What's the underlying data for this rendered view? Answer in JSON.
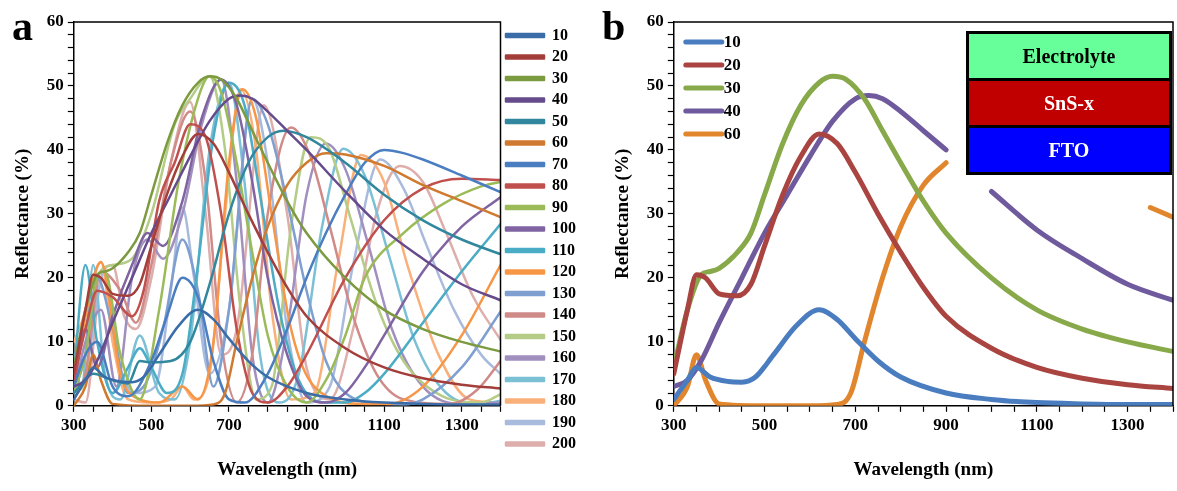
{
  "chart_data": [
    {
      "type": "line",
      "title": "a",
      "xlabel": "Wavelength (nm)",
      "ylabel": "Reflectance (%)",
      "legend": "right",
      "xlim": [
        300,
        1400
      ],
      "ylim": [
        0,
        60
      ],
      "xticks": [
        300,
        {
          "value": 350,
          "label": null
        },
        {
          "value": 400,
          "label": null
        },
        {
          "value": 450,
          "label": null
        },
        500,
        {
          "value": 550,
          "label": null
        },
        {
          "value": 600,
          "label": null
        },
        {
          "value": 650,
          "label": null
        },
        700,
        {
          "value": 750,
          "label": null
        },
        {
          "value": 800,
          "label": null
        },
        {
          "value": 850,
          "label": null
        },
        900,
        {
          "value": 950,
          "label": null
        },
        {
          "value": 1000,
          "label": null
        },
        {
          "value": 1050,
          "label": null
        },
        1100,
        {
          "value": 1150,
          "label": null
        },
        {
          "value": 1200,
          "label": null
        },
        {
          "value": 1250,
          "label": null
        },
        1300,
        {
          "value": 1350,
          "label": null
        },
        {
          "value": 1400,
          "label": null
        }
      ],
      "yticks": [
        0,
        {
          "value": 2,
          "label": null
        },
        {
          "value": 4,
          "label": null
        },
        {
          "value": 6,
          "label": null
        },
        {
          "value": 8,
          "label": null
        },
        10,
        {
          "value": 12,
          "label": null
        },
        {
          "value": 14,
          "label": null
        },
        {
          "value": 16,
          "label": null
        },
        {
          "value": 18,
          "label": null
        },
        20,
        {
          "value": 22,
          "label": null
        },
        {
          "value": 24,
          "label": null
        },
        {
          "value": 26,
          "label": null
        },
        {
          "value": 28,
          "label": null
        },
        30,
        {
          "value": 32,
          "label": null
        },
        {
          "value": 34,
          "label": null
        },
        {
          "value": 36,
          "label": null
        },
        {
          "value": 38,
          "label": null
        },
        40,
        {
          "value": 42,
          "label": null
        },
        {
          "value": 44,
          "label": null
        },
        {
          "value": 46,
          "label": null
        },
        {
          "value": 48,
          "label": null
        },
        50,
        {
          "value": 52,
          "label": null
        },
        {
          "value": 54,
          "label": null
        },
        {
          "value": 56,
          "label": null
        },
        {
          "value": 58,
          "label": null
        },
        60
      ],
      "series": [
        {
          "name": "10",
          "color": "#3a6ca8",
          "x": [
            300,
            330,
            350,
            380,
            420,
            450,
            480,
            520,
            570,
            620,
            660,
            700,
            750,
            800,
            900,
            1000,
            1100,
            1200,
            1300,
            1400
          ],
          "values": [
            1,
            4,
            6,
            4.5,
            3.8,
            3.7,
            4.5,
            8,
            12.5,
            15,
            13.5,
            10.5,
            7,
            4.5,
            2,
            1,
            0.5,
            0.3,
            0.2,
            0.2
          ]
        },
        {
          "name": "20",
          "color": "#a33e3b",
          "x": [
            300,
            330,
            350,
            370,
            400,
            440,
            470,
            500,
            540,
            580,
            620,
            660,
            700,
            750,
            800,
            850,
            900,
            1000,
            1100,
            1200,
            1300,
            1400
          ],
          "values": [
            5,
            15,
            20.5,
            20,
            17.5,
            17.2,
            19,
            25,
            33,
            39,
            42.5,
            41,
            36.5,
            30,
            24,
            18.5,
            14,
            9,
            6,
            4.3,
            3.3,
            2.7
          ]
        },
        {
          "name": "30",
          "color": "#7c9a3f",
          "x": [
            300,
            330,
            360,
            380,
            400,
            440,
            470,
            500,
            540,
            580,
            620,
            650,
            680,
            720,
            760,
            800,
            850,
            900,
            1000,
            1100,
            1200,
            1300,
            1400
          ],
          "values": [
            6,
            15,
            20.5,
            21,
            21.5,
            24,
            27,
            33,
            41,
            47,
            50.5,
            51.5,
            51,
            48,
            43,
            38,
            32,
            27,
            20,
            15,
            12,
            10,
            8.5
          ]
        },
        {
          "name": "40",
          "color": "#664b8c",
          "x": [
            300,
            330,
            360,
            400,
            450,
            500,
            550,
            600,
            650,
            700,
            730,
            760,
            800,
            850,
            900,
            1000,
            1100,
            1200,
            1300,
            1400
          ],
          "values": [
            3,
            4,
            7,
            13,
            20,
            27,
            33,
            39,
            44.5,
            48,
            48.5,
            48,
            46,
            43,
            40,
            33.5,
            27.5,
            23,
            19,
            16.5
          ]
        },
        {
          "name": "50",
          "color": "#31879d",
          "x": [
            300,
            350,
            400,
            440,
            470,
            500,
            550,
            600,
            650,
            700,
            750,
            800,
            840,
            900,
            1000,
            1100,
            1200,
            1300,
            1400
          ],
          "values": [
            2,
            5,
            4,
            3.5,
            7,
            6.8,
            7,
            10,
            19,
            30,
            38,
            42,
            43,
            42,
            38,
            33,
            29,
            26,
            23.7
          ]
        },
        {
          "name": "60",
          "color": "#d07a30",
          "x": [
            300,
            330,
            350,
            370,
            400,
            500,
            600,
            660,
            690,
            720,
            760,
            800,
            850,
            900,
            950,
            1000,
            1100,
            1200,
            1300,
            1400
          ],
          "values": [
            0,
            3,
            8,
            4,
            0.3,
            0,
            0,
            0.2,
            2,
            10,
            20,
            28,
            34.5,
            38,
            39.5,
            39.3,
            37.5,
            34.5,
            32,
            29.5
          ]
        },
        {
          "name": "70",
          "color": "#4a7ec0",
          "x": [
            300,
            330,
            360,
            400,
            440,
            500,
            540,
            580,
            620,
            660,
            700,
            740,
            800,
            850,
            900,
            950,
            1000,
            1050,
            1100,
            1150,
            1200,
            1300,
            1400
          ],
          "values": [
            3,
            8,
            10,
            3,
            1.5,
            7,
            14,
            20,
            17,
            7,
            1,
            0.5,
            5,
            12,
            20,
            27,
            33,
            38,
            40,
            39.5,
            38.5,
            36,
            33.4
          ]
        },
        {
          "name": "80",
          "color": "#c0504d",
          "x": [
            300,
            330,
            360,
            400,
            450,
            480,
            520,
            560,
            600,
            640,
            680,
            720,
            760,
            800,
            850,
            900,
            1000,
            1100,
            1200,
            1300,
            1400
          ],
          "values": [
            4,
            12,
            18,
            17,
            14,
            18,
            32,
            38,
            44,
            42,
            30,
            12,
            2,
            0.5,
            3,
            8,
            20,
            29,
            34,
            35.5,
            35.3
          ]
        },
        {
          "name": "90",
          "color": "#9bbb59",
          "x": [
            300,
            330,
            360,
            380,
            420,
            470,
            520,
            570,
            620,
            650,
            680,
            720,
            760,
            800,
            850,
            900,
            950,
            1000,
            1050,
            1150,
            1250,
            1350,
            1400
          ],
          "values": [
            2,
            8,
            20,
            21,
            8,
            1,
            15,
            35,
            48,
            51.5,
            49,
            38,
            24,
            11,
            3,
            0.5,
            4,
            11,
            20,
            27,
            31.5,
            34.3,
            35
          ]
        },
        {
          "name": "100",
          "color": "#8064a2",
          "x": [
            300,
            330,
            360,
            400,
            450,
            490,
            530,
            580,
            630,
            680,
            720,
            760,
            800,
            850,
            900,
            950,
            1000,
            1050,
            1100,
            1200,
            1300,
            1400
          ],
          "values": [
            3,
            12,
            6,
            14,
            22,
            27,
            25,
            32,
            45,
            51,
            47,
            35,
            20,
            8,
            1.5,
            0.5,
            2,
            6,
            11,
            21,
            28,
            32.6
          ]
        },
        {
          "name": "110",
          "color": "#4bacc6",
          "x": [
            300,
            330,
            360,
            400,
            440,
            470,
            500,
            540,
            580,
            620,
            660,
            700,
            740,
            780,
            830,
            880,
            950,
            1000,
            1050,
            1100,
            1200,
            1300,
            1400
          ],
          "values": [
            5,
            22,
            10,
            2,
            6,
            9,
            6,
            2,
            5,
            22,
            42,
            50.5,
            47,
            33,
            15,
            4,
            0.5,
            0.5,
            2,
            5,
            13,
            21,
            28.4
          ]
        },
        {
          "name": "120",
          "color": "#f79646",
          "x": [
            300,
            330,
            370,
            420,
            470,
            520,
            580,
            620,
            660,
            700,
            735,
            770,
            810,
            860,
            920,
            1050,
            1110,
            1200,
            1300,
            1400
          ],
          "values": [
            3,
            14,
            22.5,
            5,
            1,
            0.5,
            3,
            1,
            10,
            38,
            49.5,
            45,
            30,
            12,
            3,
            0.3,
            0.3,
            3,
            11,
            22
          ]
        },
        {
          "name": "130",
          "color": "#7f9fd0",
          "x": [
            300,
            330,
            360,
            400,
            440,
            480,
            530,
            580,
            620,
            660,
            700,
            760,
            800,
            850,
            900,
            950,
            1000,
            1100,
            1150,
            1200,
            1300,
            1400
          ],
          "values": [
            2,
            8,
            20,
            12,
            2,
            3,
            12,
            26,
            18,
            3,
            15,
            48,
            44,
            32,
            18,
            7,
            2,
            0.3,
            0.2,
            1,
            6,
            14.7
          ]
        },
        {
          "name": "140",
          "color": "#d08a88",
          "x": [
            300,
            330,
            370,
            420,
            460,
            500,
            550,
            600,
            640,
            680,
            720,
            760,
            800,
            860,
            910,
            960,
            1020,
            1080,
            1150,
            1270,
            1340,
            1400
          ],
          "values": [
            1,
            5,
            21,
            18,
            13,
            22,
            38,
            46,
            35,
            10,
            0.5,
            8,
            30,
            43.5,
            39,
            28,
            14,
            5,
            1,
            0.3,
            2.5,
            7
          ]
        },
        {
          "name": "150",
          "color": "#b4cc86",
          "x": [
            300,
            330,
            360,
            400,
            450,
            500,
            560,
            600,
            650,
            690,
            730,
            770,
            810,
            860,
            910,
            960,
            1010,
            1080,
            1150,
            1250,
            1350,
            1400
          ],
          "values": [
            2,
            4,
            20,
            22,
            23,
            30,
            44,
            48,
            51.5,
            40,
            15,
            1,
            3,
            28,
            42,
            40,
            30,
            16,
            7,
            1.5,
            0.5,
            1.8
          ]
        },
        {
          "name": "160",
          "color": "#a08fbf",
          "x": [
            300,
            330,
            370,
            410,
            450,
            490,
            530,
            580,
            630,
            680,
            720,
            760,
            800,
            850,
            900,
            950,
            1000,
            1060,
            1120,
            1200,
            1300,
            1400
          ],
          "values": [
            2,
            10,
            15,
            3,
            20,
            26,
            23,
            30,
            44,
            51,
            35,
            8,
            0.5,
            12,
            33,
            41,
            37,
            25,
            12,
            3,
            0.3,
            0.5
          ]
        },
        {
          "name": "170",
          "color": "#7cc0d6",
          "x": [
            300,
            320,
            350,
            380,
            420,
            470,
            520,
            560,
            600,
            650,
            700,
            740,
            780,
            830,
            880,
            940,
            995,
            1050,
            1110,
            1180,
            1260,
            1350,
            1400
          ],
          "values": [
            8,
            3,
            22,
            5,
            1,
            11,
            2,
            1,
            10,
            40,
            50.5,
            35,
            8,
            0.5,
            5,
            28,
            40.2,
            36,
            24,
            10,
            2,
            0.3,
            0.8
          ]
        },
        {
          "name": "180",
          "color": "#f9b07a",
          "x": [
            300,
            320,
            370,
            400,
            440,
            500,
            550,
            580,
            610,
            650,
            690,
            730,
            770,
            810,
            860,
            920,
            980,
            1040,
            1100,
            1160,
            1240,
            1320,
            1400
          ],
          "values": [
            10,
            13,
            22.5,
            10,
            1,
            0.5,
            1,
            3,
            1,
            5,
            30,
            49.5,
            40,
            15,
            1,
            2,
            22,
            39.2,
            35,
            22,
            8,
            1,
            0.5
          ]
        },
        {
          "name": "190",
          "color": "#a9bbdd",
          "x": [
            330,
            380,
            420,
            460,
            510,
            550,
            580,
            610,
            650,
            700,
            760,
            800,
            850,
            900,
            960,
            1020,
            1090,
            1150,
            1210,
            1280,
            1350,
            1400
          ],
          "values": [
            4,
            21,
            6,
            2,
            3,
            18,
            31,
            20,
            5,
            15,
            48,
            38,
            12,
            0.5,
            3,
            22,
            38.5,
            34,
            25,
            15,
            8,
            5
          ]
        },
        {
          "name": "200",
          "color": "#ddaeac",
          "x": [
            300,
            330,
            370,
            400,
            430,
            460,
            500,
            550,
            600,
            640,
            680,
            720,
            790,
            850,
            900,
            960,
            1020,
            1080,
            1140,
            1200,
            1260,
            1330,
            1400
          ],
          "values": [
            1,
            0.5,
            20,
            22,
            14,
            12,
            20,
            38,
            47.5,
            30,
            8,
            12,
            47,
            30,
            6,
            1,
            12,
            30,
            37.5,
            35,
            27,
            17,
            10.3
          ]
        }
      ]
    },
    {
      "type": "line",
      "title": "b",
      "xlabel": "Wavelength (nm)",
      "ylabel": "Reflectance (%)",
      "legend": "top left",
      "annotations": [
        "Electrolyte",
        "SnS-x",
        "FTO"
      ],
      "xlim": [
        300,
        1400
      ],
      "ylim": [
        0,
        60
      ],
      "xticks": [
        300,
        {
          "value": 350,
          "label": null
        },
        {
          "value": 400,
          "label": null
        },
        {
          "value": 450,
          "label": null
        },
        500,
        {
          "value": 550,
          "label": null
        },
        {
          "value": 600,
          "label": null
        },
        {
          "value": 650,
          "label": null
        },
        700,
        {
          "value": 750,
          "label": null
        },
        {
          "value": 800,
          "label": null
        },
        {
          "value": 850,
          "label": null
        },
        900,
        {
          "value": 950,
          "label": null
        },
        {
          "value": 1000,
          "label": null
        },
        {
          "value": 1050,
          "label": null
        },
        1100,
        {
          "value": 1150,
          "label": null
        },
        {
          "value": 1200,
          "label": null
        },
        {
          "value": 1250,
          "label": null
        },
        1300,
        {
          "value": 1350,
          "label": null
        },
        {
          "value": 1400,
          "label": null
        }
      ],
      "yticks": [
        0,
        {
          "value": 2,
          "label": null
        },
        {
          "value": 4,
          "label": null
        },
        {
          "value": 6,
          "label": null
        },
        {
          "value": 8,
          "label": null
        },
        10,
        {
          "value": 12,
          "label": null
        },
        {
          "value": 14,
          "label": null
        },
        {
          "value": 16,
          "label": null
        },
        {
          "value": 18,
          "label": null
        },
        20,
        {
          "value": 22,
          "label": null
        },
        {
          "value": 24,
          "label": null
        },
        {
          "value": 26,
          "label": null
        },
        {
          "value": 28,
          "label": null
        },
        30,
        {
          "value": 32,
          "label": null
        },
        {
          "value": 34,
          "label": null
        },
        {
          "value": 36,
          "label": null
        },
        {
          "value": 38,
          "label": null
        },
        40,
        {
          "value": 42,
          "label": null
        },
        {
          "value": 44,
          "label": null
        },
        {
          "value": 46,
          "label": null
        },
        {
          "value": 48,
          "label": null
        },
        50,
        {
          "value": 52,
          "label": null
        },
        {
          "value": 54,
          "label": null
        },
        {
          "value": 56,
          "label": null
        },
        {
          "value": 58,
          "label": null
        },
        60
      ],
      "series": [
        {
          "name": "10",
          "color": "#4a7dbf",
          "x": [
            300,
            330,
            350,
            380,
            420,
            450,
            480,
            520,
            570,
            620,
            660,
            700,
            750,
            800,
            900,
            1000,
            1100,
            1200,
            1300,
            1400
          ],
          "values": [
            1,
            4,
            6,
            4.5,
            3.8,
            3.7,
            4.5,
            8,
            12.5,
            15,
            13.5,
            10.5,
            7,
            4.5,
            2,
            1,
            0.5,
            0.3,
            0.2,
            0.2
          ]
        },
        {
          "name": "20",
          "color": "#a94441",
          "x": [
            300,
            330,
            350,
            370,
            400,
            440,
            470,
            500,
            540,
            580,
            620,
            660,
            700,
            750,
            800,
            850,
            900,
            1000,
            1100,
            1200,
            1300,
            1400
          ],
          "values": [
            5,
            15,
            20.5,
            20,
            17.5,
            17.2,
            19,
            25,
            33,
            39,
            42.5,
            41,
            36.5,
            30,
            24,
            18.5,
            14,
            9,
            6,
            4.3,
            3.3,
            2.7
          ]
        },
        {
          "name": "30",
          "color": "#88a94a",
          "x": [
            300,
            330,
            360,
            380,
            400,
            440,
            470,
            500,
            540,
            580,
            620,
            650,
            680,
            720,
            760,
            800,
            850,
            900,
            1000,
            1100,
            1200,
            1300,
            1400
          ],
          "values": [
            6,
            15,
            20.5,
            21,
            21.5,
            24,
            27,
            33,
            41,
            47,
            50.5,
            51.5,
            51,
            48,
            43,
            38,
            32,
            27,
            20,
            15,
            12,
            10,
            8.5
          ]
        },
        {
          "name": "40",
          "color": "#6e5a9c",
          "x": [
            300,
            330,
            360,
            400,
            450,
            500,
            550,
            600,
            650,
            700,
            730,
            760,
            800,
            850,
            900,
            950,
            1000,
            1100,
            1200,
            1300,
            1400
          ],
          "values": [
            3,
            4,
            7,
            13,
            20,
            27,
            33,
            39,
            44.5,
            48,
            48.5,
            48,
            46,
            43,
            40,
            null,
            33.5,
            27.5,
            23,
            19,
            16.5
          ]
        },
        {
          "name": "60",
          "color": "#e2862e",
          "x": [
            300,
            330,
            350,
            370,
            400,
            500,
            600,
            660,
            690,
            720,
            760,
            800,
            850,
            900,
            950,
            1000,
            1100,
            1200,
            1300,
            1350,
            1400
          ],
          "values": [
            0,
            3,
            8,
            4,
            0.3,
            0,
            0,
            0.2,
            2,
            10,
            20,
            28,
            34.5,
            38,
            null,
            null,
            null,
            null,
            null,
            31,
            29.5
          ]
        }
      ]
    }
  ]
}
